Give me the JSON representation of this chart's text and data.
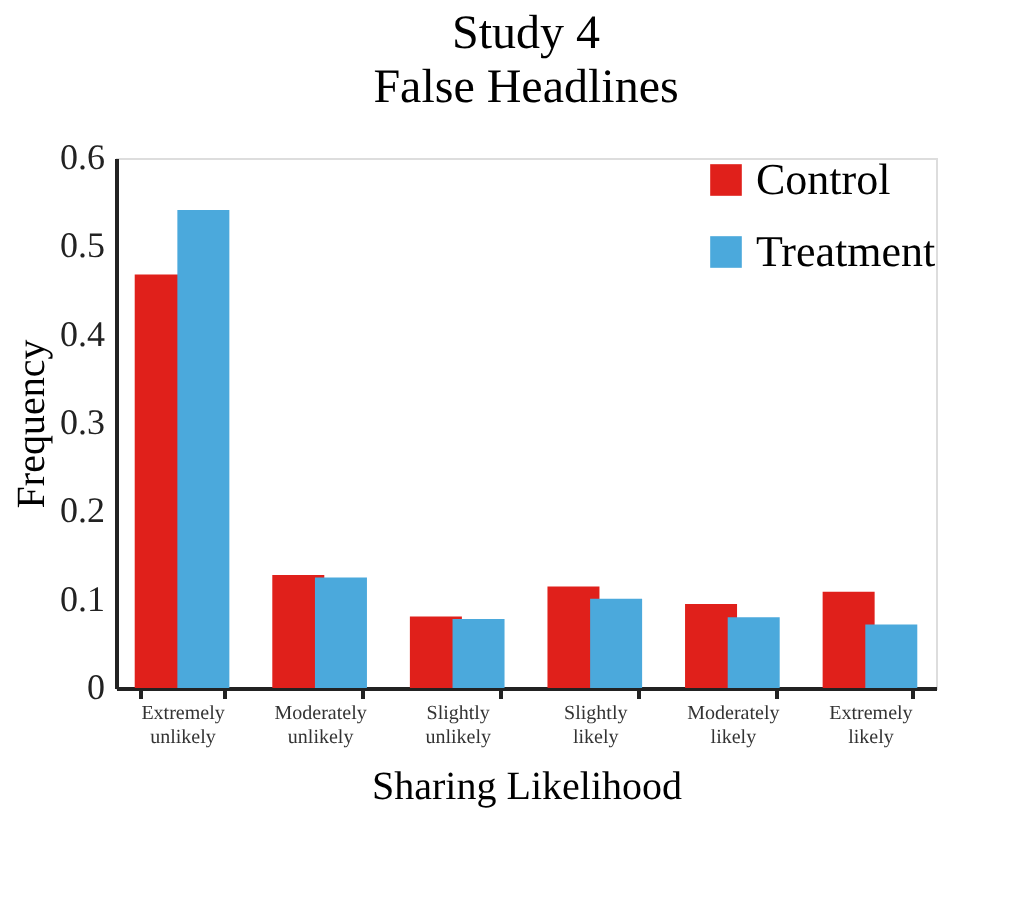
{
  "chart_data": {
    "type": "bar",
    "title": "Study 4",
    "subtitle": "False Headlines",
    "xlabel": "Sharing Likelihood",
    "ylabel": "Frequency",
    "categories": [
      "Extremely unlikely",
      "Moderately unlikely",
      "Slightly unlikely",
      "Slightly likely",
      "Moderately likely",
      "Extremely likely"
    ],
    "series": [
      {
        "name": "Control",
        "color": "#e0201b",
        "values": [
          0.468,
          0.128,
          0.081,
          0.115,
          0.095,
          0.109
        ]
      },
      {
        "name": "Treatment",
        "color": "#4ba9dc",
        "values": [
          0.541,
          0.125,
          0.078,
          0.101,
          0.08,
          0.072
        ]
      }
    ],
    "ylim": [
      0,
      0.6
    ],
    "yticks": [
      0,
      0.1,
      0.2,
      0.3,
      0.4,
      0.5,
      0.6
    ],
    "grid": false,
    "legend": "top right"
  }
}
